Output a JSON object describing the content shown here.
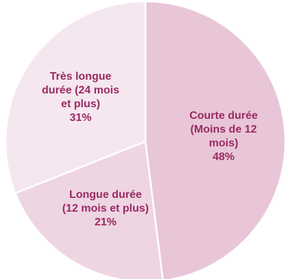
{
  "chart_data": {
    "type": "pie",
    "categories": [
      "Courte durée (Moins de 12 mois)",
      "Longue durée (12 mois et plus)",
      "Très longue durée (24 mois et plus)"
    ],
    "values": [
      48,
      21,
      31
    ],
    "value_labels": [
      "48%",
      "21%",
      "31%"
    ],
    "colors": [
      "#e8c6d7",
      "#eed5e2",
      "#f5e7ef"
    ]
  }
}
